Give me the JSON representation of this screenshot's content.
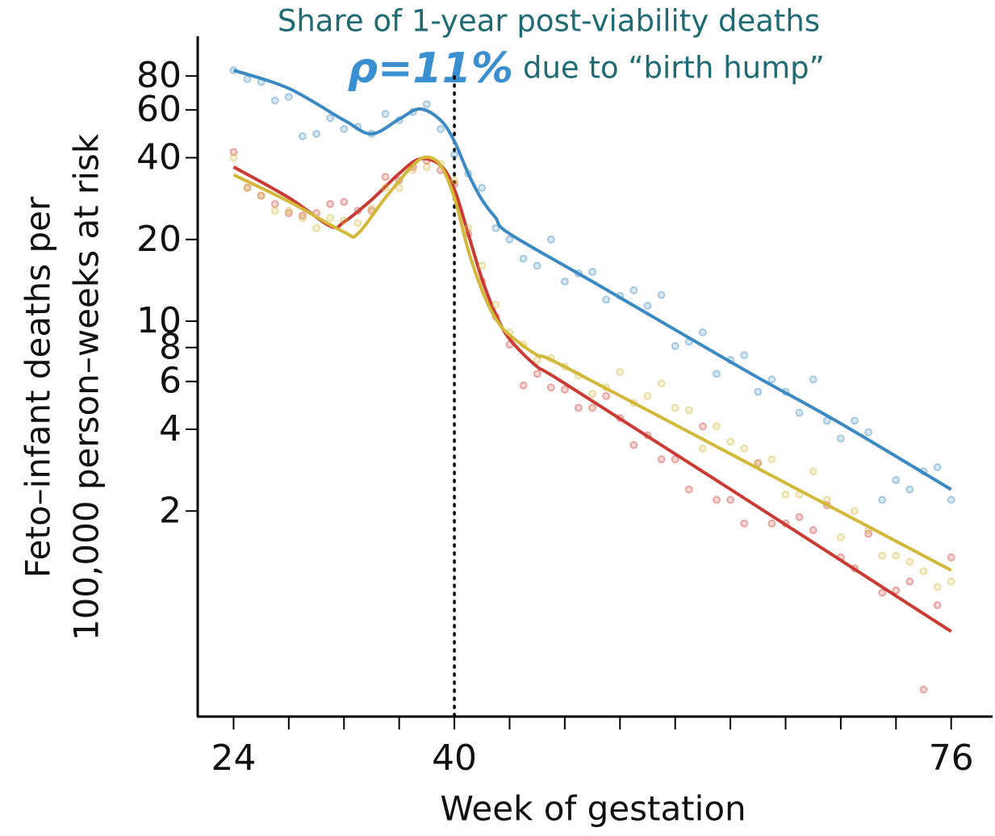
{
  "chart_data": {
    "type": "line",
    "title": "Share of 1-year post-viability deaths",
    "annotation_value": "ρ=11%",
    "annotation_text": "due to “birth hump”",
    "x_label": "Week of gestation",
    "y_label": [
      "Feto–infant deaths per",
      "100,000 person–weeks at risk"
    ],
    "log_y": true,
    "xlim": [
      21.4,
      79
    ],
    "ylim": [
      0.35,
      112
    ],
    "xticks": [
      24,
      40,
      76
    ],
    "xminor_ticks": [
      28,
      32,
      36,
      44,
      48,
      52,
      56,
      60,
      64,
      68,
      72
    ],
    "yticks": [
      2,
      4,
      6,
      8,
      10,
      20,
      40,
      60,
      80
    ],
    "vline_x": 40,
    "points_x": [
      24,
      25,
      26,
      27,
      28,
      29,
      30,
      31,
      32,
      33,
      34,
      35,
      36,
      37,
      38,
      39,
      40,
      41,
      42,
      43,
      44,
      45,
      46,
      47,
      48,
      49,
      50,
      51,
      52,
      53,
      54,
      55,
      56,
      57,
      58,
      59,
      60,
      61,
      62,
      63,
      64,
      65,
      66,
      67,
      68,
      69,
      70,
      71,
      72,
      73,
      74,
      75,
      76
    ],
    "series": [
      {
        "color": "#3b8ac4",
        "x": [
          24,
          28,
          32,
          34,
          36,
          37.5,
          39,
          40,
          41,
          42,
          43,
          44,
          50,
          56,
          62,
          68,
          76
        ],
        "values": [
          84,
          72,
          55,
          49,
          55.5,
          60.5,
          55,
          46,
          35,
          28,
          24,
          21,
          14,
          9.3,
          6.2,
          4.2,
          2.4
        ],
        "points": [
          84,
          78,
          76,
          65,
          67,
          48,
          49,
          56,
          51,
          52,
          49,
          58,
          55,
          59,
          63,
          51,
          41,
          35,
          31,
          22,
          20,
          17,
          16,
          20,
          14,
          15,
          15.2,
          12,
          12.4,
          13,
          11.4,
          12.5,
          8.1,
          8.4,
          9.1,
          6.4,
          7.2,
          7.5,
          5.5,
          6.1,
          5.5,
          4.6,
          6.1,
          4.3,
          3.7,
          4.3,
          3.9,
          2.2,
          2.6,
          2.4,
          2.8,
          2.9,
          2.2
        ]
      },
      {
        "color": "#cc3b33",
        "x": [
          24,
          28,
          31,
          32,
          34,
          36,
          37.5,
          39,
          40,
          41,
          42,
          43,
          44,
          46,
          48,
          62,
          76
        ],
        "values": [
          37,
          28.5,
          22.4,
          23.2,
          28,
          35,
          39.6,
          37.5,
          30.6,
          21,
          14.3,
          10.6,
          8.6,
          6.8,
          5.9,
          2.07,
          0.72
        ],
        "points": [
          42,
          31,
          29,
          27,
          25,
          24.5,
          25,
          27,
          27.5,
          25.5,
          25.5,
          34,
          33,
          37,
          39,
          36,
          32,
          21,
          14,
          10.4,
          8.2,
          5.8,
          6.4,
          5.7,
          5.6,
          4.8,
          4.8,
          5.3,
          4.4,
          3.5,
          3.8,
          3.1,
          3.1,
          2.4,
          4.1,
          2.2,
          2.2,
          1.8,
          3.0,
          1.8,
          1.8,
          1.9,
          1.7,
          2.1,
          1.35,
          1.23,
          1.65,
          1.0,
          1.02,
          1.1,
          0.44,
          0.9,
          1.35
        ]
      },
      {
        "color": "#d4b83a",
        "x": [
          24,
          28,
          32,
          33,
          35,
          37,
          38,
          39,
          40,
          41,
          42,
          43,
          44,
          46,
          48,
          62,
          76
        ],
        "values": [
          34.6,
          27.6,
          21.3,
          21,
          28.5,
          37.5,
          40.2,
          37.5,
          28.5,
          18.3,
          13,
          10.2,
          8.9,
          7.5,
          6.8,
          2.87,
          1.21
        ],
        "points": [
          40,
          31,
          29,
          25.5,
          25.5,
          24,
          22,
          24,
          23.5,
          23,
          26,
          31,
          31,
          36,
          37,
          38,
          33,
          22,
          16,
          11.5,
          9.1,
          8.2,
          7.2,
          7.3,
          6.8,
          6.3,
          5.4,
          5.7,
          6.5,
          5.0,
          5.3,
          5.9,
          4.8,
          4.7,
          3.4,
          4.1,
          3.6,
          3.4,
          3.0,
          3.1,
          2.3,
          2.3,
          2.8,
          2.2,
          1.6,
          2.0,
          1.7,
          1.37,
          1.37,
          1.3,
          1.2,
          1.05,
          1.1
        ]
      }
    ]
  }
}
